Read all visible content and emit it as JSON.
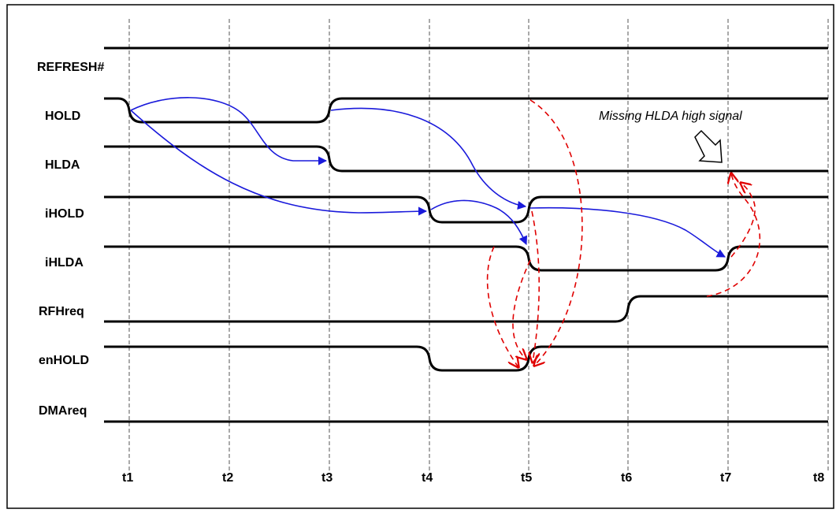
{
  "signals": [
    {
      "name": "REFRESH#"
    },
    {
      "name": "HOLD"
    },
    {
      "name": "HLDA"
    },
    {
      "name": "iHOLD"
    },
    {
      "name": "iHLDA"
    },
    {
      "name": "RFHreq"
    },
    {
      "name": "enHOLD"
    },
    {
      "name": "DMAreq"
    }
  ],
  "time_markers": [
    "t1",
    "t2",
    "t3",
    "t4",
    "t5",
    "t6",
    "t7",
    "t8"
  ],
  "annotation": {
    "text": "Missing HLDA high signal"
  },
  "colors": {
    "causal_arrow": "#1a1adb",
    "dependency_arrow": "#e00000",
    "waveform": "#000000"
  }
}
